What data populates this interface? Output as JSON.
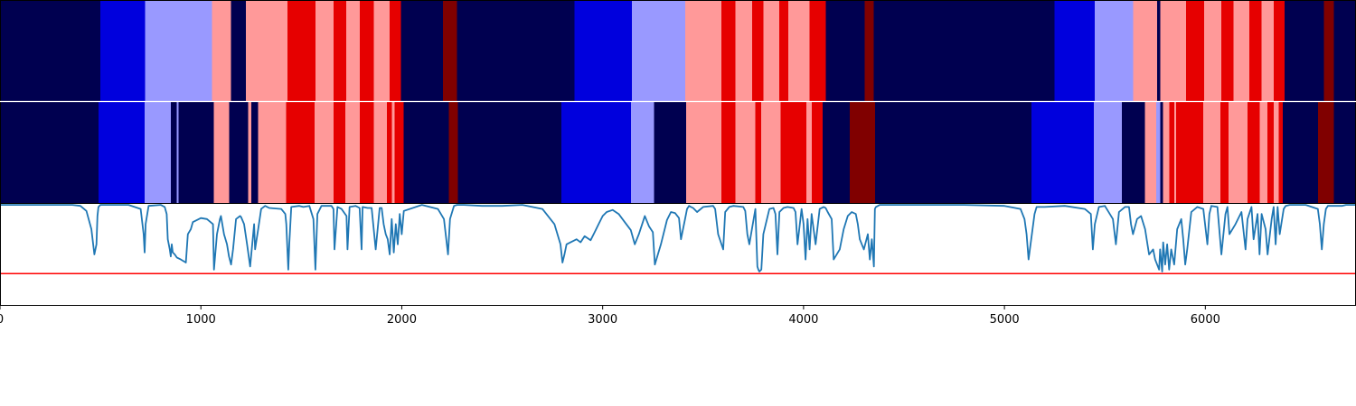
{
  "chart_data": {
    "type": "heatmap",
    "title": "",
    "xlabel": "",
    "ylabel": "",
    "xlim": [
      0,
      6750
    ],
    "x_ticks": [
      0,
      1000,
      2000,
      3000,
      4000,
      5000,
      6000
    ],
    "colors": {
      "0": "#000050",
      "1": "#0000dd",
      "2": "#9999ff",
      "3": "#ff9999",
      "4": "#e60000",
      "5": "#800000"
    },
    "segment_tracks": [
      {
        "segments": [
          [
            0,
            500,
            0
          ],
          [
            500,
            723,
            1
          ],
          [
            723,
            1055,
            2
          ],
          [
            1055,
            1150,
            3
          ],
          [
            1150,
            1223,
            0
          ],
          [
            1223,
            1430,
            3
          ],
          [
            1430,
            1570,
            4
          ],
          [
            1570,
            1660,
            3
          ],
          [
            1660,
            1723,
            4
          ],
          [
            1723,
            1790,
            3
          ],
          [
            1790,
            1860,
            4
          ],
          [
            1860,
            1940,
            3
          ],
          [
            1940,
            1995,
            4
          ],
          [
            1995,
            2205,
            0
          ],
          [
            2205,
            2275,
            5
          ],
          [
            2275,
            2860,
            0
          ],
          [
            2860,
            3145,
            1
          ],
          [
            3145,
            3410,
            2
          ],
          [
            3410,
            3590,
            3
          ],
          [
            3590,
            3660,
            4
          ],
          [
            3660,
            3745,
            3
          ],
          [
            3745,
            3800,
            4
          ],
          [
            3800,
            3880,
            3
          ],
          [
            3880,
            3925,
            4
          ],
          [
            3925,
            4030,
            3
          ],
          [
            4030,
            4110,
            4
          ],
          [
            4110,
            4305,
            0
          ],
          [
            4305,
            4350,
            5
          ],
          [
            4350,
            5250,
            0
          ],
          [
            5250,
            5450,
            1
          ],
          [
            5450,
            5640,
            2
          ],
          [
            5640,
            5760,
            3
          ],
          [
            5760,
            5775,
            0
          ],
          [
            5775,
            5905,
            3
          ],
          [
            5905,
            5995,
            4
          ],
          [
            5995,
            6080,
            3
          ],
          [
            6080,
            6140,
            4
          ],
          [
            6140,
            6220,
            3
          ],
          [
            6220,
            6280,
            4
          ],
          [
            6280,
            6340,
            3
          ],
          [
            6340,
            6395,
            4
          ],
          [
            6395,
            6590,
            0
          ],
          [
            6590,
            6640,
            5
          ],
          [
            6640,
            6750,
            0
          ]
        ]
      },
      {
        "segments": [
          [
            0,
            490,
            0
          ],
          [
            490,
            720,
            1
          ],
          [
            720,
            850,
            2
          ],
          [
            850,
            880,
            0
          ],
          [
            880,
            888,
            2
          ],
          [
            888,
            1065,
            0
          ],
          [
            1065,
            1140,
            3
          ],
          [
            1140,
            1235,
            0
          ],
          [
            1235,
            1250,
            3
          ],
          [
            1250,
            1285,
            0
          ],
          [
            1285,
            1425,
            3
          ],
          [
            1425,
            1565,
            4
          ],
          [
            1565,
            1660,
            3
          ],
          [
            1660,
            1720,
            4
          ],
          [
            1720,
            1790,
            3
          ],
          [
            1790,
            1860,
            4
          ],
          [
            1860,
            1925,
            3
          ],
          [
            1925,
            1950,
            4
          ],
          [
            1950,
            1965,
            3
          ],
          [
            1965,
            2010,
            4
          ],
          [
            2010,
            2235,
            0
          ],
          [
            2235,
            2280,
            5
          ],
          [
            2280,
            2795,
            0
          ],
          [
            2795,
            3140,
            1
          ],
          [
            3140,
            3255,
            2
          ],
          [
            3255,
            3415,
            0
          ],
          [
            3415,
            3590,
            3
          ],
          [
            3590,
            3660,
            4
          ],
          [
            3660,
            3760,
            3
          ],
          [
            3760,
            3790,
            4
          ],
          [
            3790,
            3885,
            3
          ],
          [
            3885,
            4015,
            4
          ],
          [
            4015,
            4040,
            3
          ],
          [
            4040,
            4095,
            4
          ],
          [
            4095,
            4230,
            0
          ],
          [
            4230,
            4355,
            5
          ],
          [
            4355,
            5135,
            0
          ],
          [
            5135,
            5445,
            1
          ],
          [
            5445,
            5585,
            2
          ],
          [
            5585,
            5700,
            0
          ],
          [
            5700,
            5755,
            3
          ],
          [
            5755,
            5775,
            2
          ],
          [
            5775,
            5790,
            0
          ],
          [
            5790,
            5820,
            3
          ],
          [
            5820,
            5845,
            4
          ],
          [
            5845,
            5855,
            3
          ],
          [
            5855,
            5990,
            4
          ],
          [
            5990,
            6075,
            3
          ],
          [
            6075,
            6115,
            4
          ],
          [
            6115,
            6210,
            3
          ],
          [
            6210,
            6270,
            4
          ],
          [
            6270,
            6310,
            3
          ],
          [
            6310,
            6340,
            4
          ],
          [
            6340,
            6365,
            3
          ],
          [
            6365,
            6385,
            4
          ],
          [
            6385,
            6560,
            0
          ],
          [
            6560,
            6640,
            5
          ],
          [
            6640,
            6750,
            0
          ]
        ]
      }
    ],
    "line_panel": {
      "ylim": [
        0,
        1
      ],
      "threshold": 0.31,
      "line_color": "#1f77b4",
      "threshold_color": "#ff0000",
      "series": [
        {
          "x": [
            0,
            360,
            400,
            430,
            455,
            470,
            480,
            485,
            490,
            500,
            520,
            560,
            640,
            700,
            715,
            720,
            725,
            740,
            800,
            820,
            830,
            835,
            845,
            850,
            855,
            860,
            870,
            880,
            900,
            925,
            935,
            950,
            960,
            990,
            1000,
            1030,
            1060,
            1065,
            1080,
            1095,
            1100,
            1115,
            1130,
            1140,
            1150,
            1160,
            1175,
            1195,
            1200,
            1215,
            1230,
            1245,
            1265,
            1270,
            1285,
            1300,
            1320,
            1340,
            1400,
            1420,
            1425,
            1435,
            1440,
            1450,
            1490,
            1510,
            1540,
            1560,
            1570,
            1580,
            1600,
            1650,
            1660,
            1665,
            1680,
            1700,
            1725,
            1730,
            1740,
            1770,
            1790,
            1800,
            1805,
            1830,
            1850,
            1870,
            1890,
            1900,
            1910,
            1920,
            1930,
            1940,
            1950,
            1960,
            1970,
            1980,
            1990,
            2000,
            2010,
            2100,
            2180,
            2210,
            2230,
            2240,
            2260,
            2275,
            2290,
            2310,
            2400,
            2500,
            2600,
            2700,
            2760,
            2790,
            2800,
            2810,
            2820,
            2840,
            2870,
            2890,
            2910,
            2940,
            2960,
            2980,
            3000,
            3020,
            3050,
            3080,
            3110,
            3140,
            3160,
            3180,
            3200,
            3210,
            3230,
            3250,
            3260,
            3290,
            3320,
            3340,
            3360,
            3380,
            3390,
            3410,
            3420,
            3430,
            3440,
            3450,
            3470,
            3500,
            3550,
            3560,
            3575,
            3600,
            3610,
            3630,
            3650,
            3700,
            3710,
            3720,
            3730,
            3760,
            3770,
            3775,
            3780,
            3790,
            3800,
            3830,
            3850,
            3860,
            3870,
            3880,
            3900,
            3920,
            3950,
            3960,
            3970,
            3990,
            4000,
            4010,
            4020,
            4030,
            4040,
            4060,
            4080,
            4100,
            4110,
            4120,
            4140,
            4150,
            4180,
            4200,
            4220,
            4240,
            4260,
            4270,
            4280,
            4300,
            4320,
            4330,
            4340,
            4350,
            4355,
            4360,
            4380,
            4500,
            4800,
            5000,
            5080,
            5100,
            5110,
            5120,
            5130,
            5140,
            5150,
            5160,
            5200,
            5300,
            5400,
            5430,
            5440,
            5450,
            5470,
            5500,
            5540,
            5555,
            5570,
            5600,
            5620,
            5630,
            5640,
            5660,
            5680,
            5700,
            5720,
            5740,
            5750,
            5760,
            5770,
            5775,
            5785,
            5790,
            5800,
            5810,
            5820,
            5830,
            5845,
            5860,
            5880,
            5890,
            5900,
            5910,
            5930,
            5960,
            5990,
            6010,
            6020,
            6030,
            6060,
            6080,
            6100,
            6110,
            6120,
            6150,
            6180,
            6200,
            6210,
            6230,
            6240,
            6260,
            6270,
            6280,
            6300,
            6310,
            6330,
            6340,
            6350,
            6360,
            6370,
            6390,
            6400,
            6420,
            6500,
            6560,
            6570,
            6580,
            6590,
            6600,
            6610,
            6640,
            6680,
            6700,
            6750
          ],
          "y": [
            0.99,
            0.99,
            0.98,
            0.93,
            0.75,
            0.5,
            0.6,
            0.88,
            0.97,
            0.99,
            0.99,
            0.99,
            0.99,
            0.95,
            0.7,
            0.52,
            0.8,
            0.98,
            0.99,
            0.97,
            0.9,
            0.65,
            0.55,
            0.48,
            0.6,
            0.52,
            0.5,
            0.47,
            0.45,
            0.42,
            0.7,
            0.75,
            0.82,
            0.85,
            0.86,
            0.85,
            0.8,
            0.35,
            0.7,
            0.85,
            0.88,
            0.7,
            0.6,
            0.48,
            0.4,
            0.55,
            0.85,
            0.88,
            0.87,
            0.8,
            0.6,
            0.38,
            0.8,
            0.55,
            0.75,
            0.95,
            0.98,
            0.96,
            0.95,
            0.9,
            0.8,
            0.35,
            0.6,
            0.97,
            0.98,
            0.97,
            0.98,
            0.85,
            0.35,
            0.9,
            0.98,
            0.98,
            0.95,
            0.55,
            0.97,
            0.95,
            0.88,
            0.55,
            0.97,
            0.98,
            0.96,
            0.55,
            0.97,
            0.96,
            0.96,
            0.55,
            0.96,
            0.96,
            0.8,
            0.7,
            0.65,
            0.5,
            0.85,
            0.52,
            0.8,
            0.6,
            0.9,
            0.7,
            0.93,
            0.99,
            0.95,
            0.85,
            0.5,
            0.85,
            0.98,
            0.99,
            0.99,
            0.99,
            0.98,
            0.98,
            0.99,
            0.95,
            0.8,
            0.6,
            0.42,
            0.5,
            0.6,
            0.62,
            0.65,
            0.62,
            0.68,
            0.64,
            0.72,
            0.8,
            0.88,
            0.92,
            0.94,
            0.9,
            0.82,
            0.74,
            0.6,
            0.7,
            0.82,
            0.88,
            0.78,
            0.72,
            0.4,
            0.6,
            0.84,
            0.92,
            0.91,
            0.86,
            0.65,
            0.85,
            0.95,
            0.98,
            0.97,
            0.96,
            0.92,
            0.97,
            0.98,
            0.95,
            0.7,
            0.55,
            0.92,
            0.97,
            0.98,
            0.97,
            0.93,
            0.7,
            0.6,
            0.95,
            0.38,
            0.35,
            0.33,
            0.35,
            0.7,
            0.95,
            0.96,
            0.9,
            0.5,
            0.92,
            0.96,
            0.97,
            0.96,
            0.92,
            0.6,
            0.95,
            0.8,
            0.45,
            0.85,
            0.55,
            0.9,
            0.6,
            0.95,
            0.97,
            0.96,
            0.92,
            0.85,
            0.45,
            0.55,
            0.75,
            0.88,
            0.92,
            0.9,
            0.8,
            0.65,
            0.55,
            0.7,
            0.45,
            0.65,
            0.38,
            0.95,
            0.97,
            0.99,
            0.99,
            0.99,
            0.98,
            0.95,
            0.85,
            0.7,
            0.45,
            0.6,
            0.75,
            0.9,
            0.97,
            0.97,
            0.98,
            0.95,
            0.9,
            0.55,
            0.8,
            0.97,
            0.98,
            0.85,
            0.6,
            0.92,
            0.97,
            0.97,
            0.8,
            0.7,
            0.85,
            0.88,
            0.75,
            0.5,
            0.55,
            0.45,
            0.4,
            0.35,
            0.55,
            0.33,
            0.62,
            0.4,
            0.6,
            0.35,
            0.55,
            0.4,
            0.75,
            0.85,
            0.65,
            0.4,
            0.55,
            0.92,
            0.97,
            0.95,
            0.6,
            0.9,
            0.98,
            0.97,
            0.5,
            0.9,
            0.97,
            0.7,
            0.8,
            0.92,
            0.55,
            0.85,
            0.97,
            0.65,
            0.9,
            0.5,
            0.9,
            0.75,
            0.5,
            0.85,
            0.97,
            0.6,
            0.97,
            0.7,
            0.95,
            0.98,
            0.99,
            0.99,
            0.95,
            0.8,
            0.55,
            0.8,
            0.95,
            0.98,
            0.98,
            0.98,
            0.99,
            0.99
          ]
        }
      ]
    }
  }
}
